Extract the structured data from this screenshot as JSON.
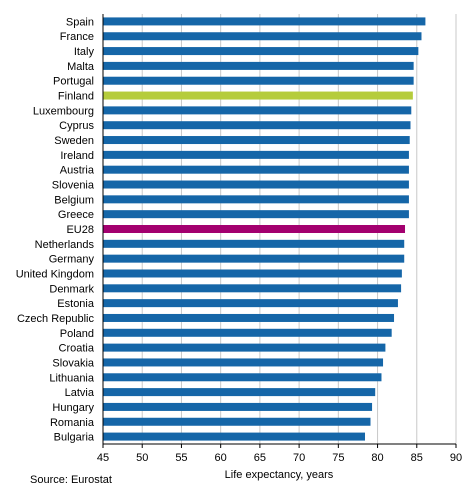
{
  "chart_data": {
    "type": "bar",
    "orientation": "horizontal",
    "categories": [
      "Spain",
      "France",
      "Italy",
      "Malta",
      "Portugal",
      "Finland",
      "Luxembourg",
      "Cyprus",
      "Sweden",
      "Ireland",
      "Austria",
      "Slovenia",
      "Belgium",
      "Greece",
      "EU28",
      "Netherlands",
      "Germany",
      "United Kingdom",
      "Denmark",
      "Estonia",
      "Czech Republic",
      "Poland",
      "Croatia",
      "Slovakia",
      "Lithuania",
      "Latvia",
      "Hungary",
      "Romania",
      "Bulgaria"
    ],
    "values": [
      86.1,
      85.6,
      85.2,
      84.6,
      84.6,
      84.5,
      84.3,
      84.2,
      84.1,
      84.0,
      84.0,
      84.0,
      84.0,
      84.0,
      83.5,
      83.4,
      83.4,
      83.1,
      83.0,
      82.6,
      82.1,
      81.8,
      81.0,
      80.7,
      80.5,
      79.7,
      79.3,
      79.1,
      78.4
    ],
    "highlight": {
      "Finland": "#b5cc3c",
      "EU28": "#a3006f"
    },
    "xlabel": "Life expectancy, years",
    "xlim": [
      45,
      90
    ],
    "xticks": [
      45,
      50,
      55,
      60,
      65,
      70,
      75,
      80,
      85,
      90
    ],
    "grid": true,
    "colors": {
      "bar": "#1566a8",
      "grid": "#c8c8c8",
      "axis": "#000000"
    }
  },
  "source": "Source: Eurostat"
}
